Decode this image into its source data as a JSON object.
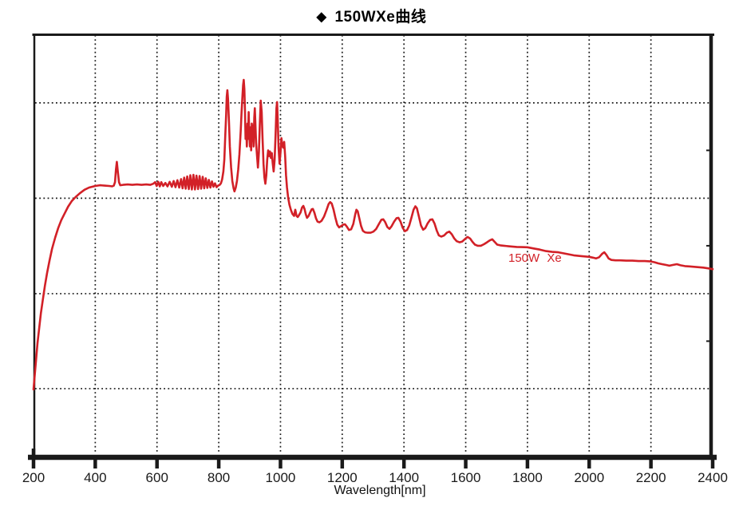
{
  "title": {
    "icon": "diamond",
    "icon_glyph": "◆",
    "text": "150WXe曲线"
  },
  "colors": {
    "curve": "#d22027",
    "axis": "#1a1a1a",
    "grid": "#1a1a1a",
    "background": "#ffffff",
    "title_text": "#000000"
  },
  "chart_data": {
    "type": "line",
    "title": "150WXe曲线",
    "xlabel": "Wavelength[nm]",
    "ylabel": "",
    "y_unit": "relative spectral intensity (arbitrary units, y-axis unlabeled)",
    "xlim": [
      200,
      2400
    ],
    "ylim": [
      0,
      110
    ],
    "x_ticks": [
      200,
      400,
      600,
      800,
      1000,
      1200,
      1400,
      1600,
      1800,
      2000,
      2200,
      2400
    ],
    "grid": {
      "style": "dotted",
      "x_gridlines_nm": [
        400,
        600,
        800,
        1000,
        1200,
        1400,
        1600,
        1800,
        2000,
        2200
      ],
      "y_gridlines": [
        17.3,
        42.1,
        67.0,
        91.9
      ]
    },
    "right_minor_ticks": [
      29.7,
      54.6,
      79.5
    ],
    "legend_position": "inline-annotation",
    "series": [
      {
        "name": "150W Xe",
        "color": "#d22027",
        "points": [
          [
            200,
            17.1
          ],
          [
            204,
            20.8
          ],
          [
            208,
            24.6
          ],
          [
            213,
            29.2
          ],
          [
            218,
            32.9
          ],
          [
            224,
            37.1
          ],
          [
            230,
            40.4
          ],
          [
            237,
            44.2
          ],
          [
            244,
            47.5
          ],
          [
            252,
            50.8
          ],
          [
            260,
            53.8
          ],
          [
            270,
            56.7
          ],
          [
            280,
            59.2
          ],
          [
            290,
            61.3
          ],
          [
            300,
            62.9
          ],
          [
            312,
            64.8
          ],
          [
            324,
            66.3
          ],
          [
            336,
            67.3
          ],
          [
            350,
            68.3
          ],
          [
            365,
            69.2
          ],
          [
            380,
            69.8
          ],
          [
            400,
            70.2
          ],
          [
            415,
            70.4
          ],
          [
            430,
            70.3
          ],
          [
            445,
            70.2
          ],
          [
            455,
            70.1
          ],
          [
            460,
            70.3
          ],
          [
            464,
            71.2
          ],
          [
            467,
            74.5
          ],
          [
            470,
            76.5
          ],
          [
            473,
            74.0
          ],
          [
            477,
            71.2
          ],
          [
            481,
            70.4
          ],
          [
            490,
            70.5
          ],
          [
            505,
            70.6
          ],
          [
            520,
            70.5
          ],
          [
            535,
            70.6
          ],
          [
            550,
            70.5
          ],
          [
            565,
            70.6
          ],
          [
            578,
            70.5
          ],
          [
            588,
            70.8
          ],
          [
            594,
            71.2
          ],
          [
            599,
            70.2
          ],
          [
            604,
            71.3
          ],
          [
            609,
            70.1
          ],
          [
            614,
            71.2
          ],
          [
            620,
            70.2
          ],
          [
            627,
            71.0
          ],
          [
            634,
            70.1
          ],
          [
            641,
            71.3
          ],
          [
            648,
            70.0
          ],
          [
            654,
            71.5
          ],
          [
            660,
            69.9
          ],
          [
            666,
            71.7
          ],
          [
            672,
            69.8
          ],
          [
            678,
            72.0
          ],
          [
            683,
            69.6
          ],
          [
            688,
            72.4
          ],
          [
            693,
            69.5
          ],
          [
            698,
            72.7
          ],
          [
            703,
            69.4
          ],
          [
            708,
            73.0
          ],
          [
            713,
            69.3
          ],
          [
            718,
            73.1
          ],
          [
            723,
            69.3
          ],
          [
            728,
            72.9
          ],
          [
            733,
            69.4
          ],
          [
            738,
            72.8
          ],
          [
            743,
            69.5
          ],
          [
            748,
            72.6
          ],
          [
            753,
            69.6
          ],
          [
            758,
            72.2
          ],
          [
            763,
            69.7
          ],
          [
            768,
            71.8
          ],
          [
            773,
            69.8
          ],
          [
            778,
            71.4
          ],
          [
            783,
            70.0
          ],
          [
            788,
            70.9
          ],
          [
            793,
            69.9
          ],
          [
            798,
            70.3
          ],
          [
            803,
            70.5
          ],
          [
            807,
            70.9
          ],
          [
            811,
            71.9
          ],
          [
            815,
            74.0
          ],
          [
            818,
            77.1
          ],
          [
            821,
            83.0
          ],
          [
            824,
            89.0
          ],
          [
            826,
            93.5
          ],
          [
            828,
            95.2
          ],
          [
            830,
            93.0
          ],
          [
            833,
            87.0
          ],
          [
            836,
            80.5
          ],
          [
            840,
            75.0
          ],
          [
            844,
            71.5
          ],
          [
            848,
            69.6
          ],
          [
            851,
            68.8
          ],
          [
            855,
            69.8
          ],
          [
            859,
            71.5
          ],
          [
            863,
            74.5
          ],
          [
            867,
            78.5
          ],
          [
            871,
            84.5
          ],
          [
            874,
            89.5
          ],
          [
            877,
            94.0
          ],
          [
            879,
            96.5
          ],
          [
            881,
            97.9
          ],
          [
            883,
            95.5
          ],
          [
            885,
            89.5
          ],
          [
            887,
            82.5
          ],
          [
            889,
            85.5
          ],
          [
            891,
            80.5
          ],
          [
            893,
            86.5
          ],
          [
            895,
            82.5
          ],
          [
            897,
            89.5
          ],
          [
            899,
            83.5
          ],
          [
            901,
            80.5
          ],
          [
            903,
            85.5
          ],
          [
            905,
            79.5
          ],
          [
            907,
            86.5
          ],
          [
            909,
            82.0
          ],
          [
            911,
            86.0
          ],
          [
            913,
            80.5
          ],
          [
            915,
            88.0
          ],
          [
            917,
            90.5
          ],
          [
            919,
            86.0
          ],
          [
            921,
            81.5
          ],
          [
            924,
            78.0
          ],
          [
            927,
            75.0
          ],
          [
            930,
            79.0
          ],
          [
            933,
            86.0
          ],
          [
            936,
            92.5
          ],
          [
            939,
            89.5
          ],
          [
            942,
            82.5
          ],
          [
            945,
            76.0
          ],
          [
            948,
            72.5
          ],
          [
            951,
            70.8
          ],
          [
            954,
            73.0
          ],
          [
            957,
            77.0
          ],
          [
            960,
            79.5
          ],
          [
            963,
            78.0
          ],
          [
            966,
            79.2
          ],
          [
            969,
            77.5
          ],
          [
            972,
            78.8
          ],
          [
            975,
            76.0
          ],
          [
            978,
            74.0
          ],
          [
            981,
            77.0
          ],
          [
            984,
            83.5
          ],
          [
            987,
            90.5
          ],
          [
            989,
            92.1
          ],
          [
            991,
            87.5
          ],
          [
            994,
            80.0
          ],
          [
            997,
            76.0
          ],
          [
            1000,
            79.0
          ],
          [
            1003,
            82.7
          ],
          [
            1006,
            80.8
          ],
          [
            1009,
            80.2
          ],
          [
            1012,
            81.7
          ],
          [
            1015,
            78.0
          ],
          [
            1018,
            73.0
          ],
          [
            1021,
            69.8
          ],
          [
            1025,
            67.1
          ],
          [
            1029,
            65.3
          ],
          [
            1034,
            63.9
          ],
          [
            1039,
            62.9
          ],
          [
            1044,
            62.4
          ],
          [
            1048,
            64.0
          ],
          [
            1052,
            62.4
          ],
          [
            1056,
            62.1
          ],
          [
            1060,
            62.6
          ],
          [
            1065,
            63.3
          ],
          [
            1070,
            64.6
          ],
          [
            1074,
            65.0
          ],
          [
            1078,
            64.2
          ],
          [
            1082,
            62.8
          ],
          [
            1086,
            61.9
          ],
          [
            1091,
            62.4
          ],
          [
            1096,
            63.3
          ],
          [
            1101,
            64.1
          ],
          [
            1105,
            64.2
          ],
          [
            1110,
            63.2
          ],
          [
            1115,
            61.8
          ],
          [
            1120,
            60.9
          ],
          [
            1126,
            60.7
          ],
          [
            1133,
            61.1
          ],
          [
            1141,
            62.2
          ],
          [
            1149,
            63.9
          ],
          [
            1156,
            65.5
          ],
          [
            1161,
            66.0
          ],
          [
            1166,
            65.6
          ],
          [
            1172,
            64.0
          ],
          [
            1178,
            61.9
          ],
          [
            1184,
            60.1
          ],
          [
            1190,
            59.4
          ],
          [
            1196,
            59.7
          ],
          [
            1203,
            60.1
          ],
          [
            1209,
            60.2
          ],
          [
            1215,
            59.6
          ],
          [
            1222,
            58.7
          ],
          [
            1229,
            58.9
          ],
          [
            1236,
            60.3
          ],
          [
            1242,
            62.8
          ],
          [
            1246,
            64.0
          ],
          [
            1250,
            63.6
          ],
          [
            1255,
            61.9
          ],
          [
            1261,
            59.8
          ],
          [
            1267,
            58.5
          ],
          [
            1274,
            58.1
          ],
          [
            1283,
            58.0
          ],
          [
            1292,
            58.0
          ],
          [
            1301,
            58.3
          ],
          [
            1310,
            59.0
          ],
          [
            1319,
            60.3
          ],
          [
            1327,
            61.4
          ],
          [
            1333,
            61.5
          ],
          [
            1339,
            60.8
          ],
          [
            1346,
            59.5
          ],
          [
            1353,
            59.0
          ],
          [
            1360,
            59.7
          ],
          [
            1368,
            60.9
          ],
          [
            1376,
            61.8
          ],
          [
            1382,
            61.9
          ],
          [
            1389,
            60.9
          ],
          [
            1396,
            59.3
          ],
          [
            1403,
            58.4
          ],
          [
            1410,
            58.7
          ],
          [
            1417,
            59.9
          ],
          [
            1424,
            61.9
          ],
          [
            1431,
            64.0
          ],
          [
            1437,
            64.9
          ],
          [
            1442,
            64.4
          ],
          [
            1448,
            62.4
          ],
          [
            1455,
            59.9
          ],
          [
            1462,
            58.8
          ],
          [
            1469,
            59.2
          ],
          [
            1477,
            60.5
          ],
          [
            1485,
            61.4
          ],
          [
            1492,
            61.5
          ],
          [
            1499,
            60.4
          ],
          [
            1506,
            58.6
          ],
          [
            1513,
            57.3
          ],
          [
            1521,
            57.0
          ],
          [
            1530,
            57.3
          ],
          [
            1539,
            58.0
          ],
          [
            1547,
            58.3
          ],
          [
            1555,
            57.6
          ],
          [
            1563,
            56.5
          ],
          [
            1571,
            55.8
          ],
          [
            1580,
            55.5
          ],
          [
            1589,
            55.7
          ],
          [
            1598,
            56.4
          ],
          [
            1606,
            56.9
          ],
          [
            1614,
            56.5
          ],
          [
            1622,
            55.6
          ],
          [
            1630,
            54.9
          ],
          [
            1639,
            54.6
          ],
          [
            1649,
            54.6
          ],
          [
            1659,
            55.0
          ],
          [
            1669,
            55.5
          ],
          [
            1678,
            56.0
          ],
          [
            1686,
            56.3
          ],
          [
            1694,
            55.6
          ],
          [
            1702,
            54.9
          ],
          [
            1712,
            54.7
          ],
          [
            1724,
            54.6
          ],
          [
            1736,
            54.5
          ],
          [
            1750,
            54.4
          ],
          [
            1765,
            54.3
          ],
          [
            1780,
            54.25
          ],
          [
            1800,
            54.2
          ],
          [
            1820,
            53.9
          ],
          [
            1840,
            53.6
          ],
          [
            1860,
            53.2
          ],
          [
            1880,
            53.0
          ],
          [
            1900,
            52.9
          ],
          [
            1925,
            52.5
          ],
          [
            1950,
            52.1
          ],
          [
            1975,
            51.9
          ],
          [
            2000,
            51.7
          ],
          [
            2012,
            51.5
          ],
          [
            2022,
            51.3
          ],
          [
            2032,
            51.6
          ],
          [
            2042,
            52.5
          ],
          [
            2049,
            52.9
          ],
          [
            2056,
            52.2
          ],
          [
            2063,
            51.3
          ],
          [
            2072,
            50.9
          ],
          [
            2085,
            50.8
          ],
          [
            2100,
            50.8
          ],
          [
            2120,
            50.7
          ],
          [
            2140,
            50.7
          ],
          [
            2160,
            50.6
          ],
          [
            2180,
            50.6
          ],
          [
            2200,
            50.5
          ],
          [
            2212,
            50.3
          ],
          [
            2224,
            50.0
          ],
          [
            2236,
            49.8
          ],
          [
            2248,
            49.6
          ],
          [
            2260,
            49.4
          ],
          [
            2272,
            49.6
          ],
          [
            2284,
            49.8
          ],
          [
            2296,
            49.5
          ],
          [
            2310,
            49.3
          ],
          [
            2325,
            49.2
          ],
          [
            2340,
            49.1
          ],
          [
            2355,
            49.0
          ],
          [
            2370,
            48.9
          ],
          [
            2385,
            48.7
          ],
          [
            2400,
            48.5
          ]
        ]
      }
    ],
    "annotations": [
      {
        "text": "150W Xe",
        "color": "#d22027",
        "x_nm": 1740,
        "y_value": 47.5
      }
    ]
  }
}
